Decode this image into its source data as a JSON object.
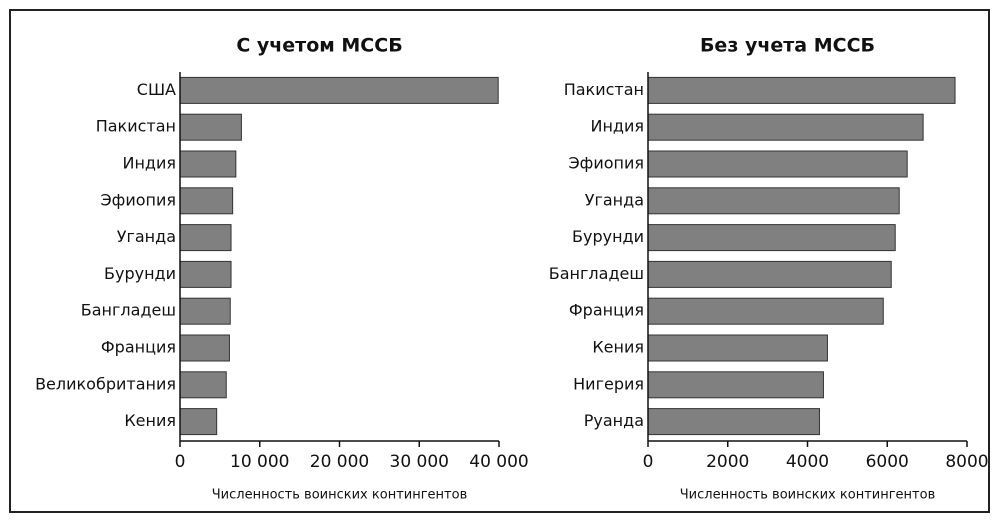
{
  "chart_data": [
    {
      "type": "barh",
      "title": "С учетом МССБ",
      "categories": [
        "США",
        "Пакистан",
        "Индия",
        "Эфиопия",
        "Уганда",
        "Бурунди",
        "Бангладеш",
        "Франция",
        "Великобритания",
        "Кения"
      ],
      "values": [
        39900,
        7700,
        7000,
        6600,
        6400,
        6400,
        6300,
        6200,
        5800,
        4600
      ],
      "xlim": [
        0,
        40000
      ],
      "xticks": [
        0,
        {
          "value": 10000,
          "label": "10 000"
        },
        {
          "value": 20000,
          "label": "20 000"
        },
        {
          "value": 30000,
          "label": "30 000"
        },
        {
          "value": 40000,
          "label": "40 000"
        }
      ],
      "xlabel": "Численность воинских контингентов",
      "color": "#808080"
    },
    {
      "type": "barh",
      "title": "Без учета МССБ",
      "categories": [
        "Пакистан",
        "Индия",
        "Эфиопия",
        "Уганда",
        "Бурунди",
        "Бангладеш",
        "Франция",
        "Кения",
        "Нигерия",
        "Руанда"
      ],
      "values": [
        7700,
        6900,
        6500,
        6300,
        6200,
        6100,
        5900,
        4500,
        4400,
        4300
      ],
      "xlim": [
        0,
        8000
      ],
      "xticks": [
        0,
        2000,
        4000,
        6000,
        8000
      ],
      "xlabel": "Численность воинских контингентов",
      "color": "#808080"
    }
  ]
}
